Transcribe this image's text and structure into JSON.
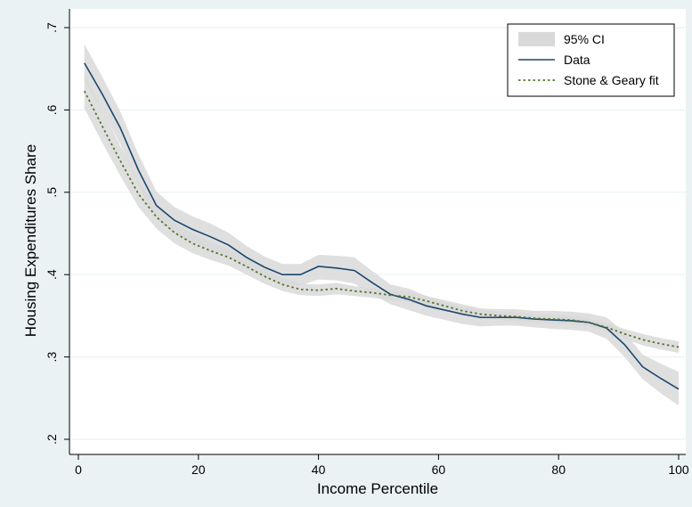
{
  "chart_data": {
    "type": "line",
    "xlabel": "Income Percentile",
    "ylabel": "Housing Expenditures Share",
    "xlim": [
      0,
      100
    ],
    "ylim": [
      0.2,
      0.7
    ],
    "x_ticks": [
      0,
      20,
      40,
      60,
      80,
      100
    ],
    "x_tick_labels": [
      "0",
      "20",
      "40",
      "60",
      "80",
      "100"
    ],
    "y_ticks": [
      0.2,
      0.3,
      0.4,
      0.5,
      0.6,
      0.7
    ],
    "y_tick_labels": [
      ".2",
      ".3",
      ".4",
      ".5",
      ".6",
      ".7"
    ],
    "grid": true,
    "legend_position": "top-right",
    "legend": [
      "95% CI",
      "Data",
      "Stone & Geary fit"
    ],
    "colors": {
      "page_bg": "#eaf2f3",
      "plot_bg": "#ffffff",
      "ci": "#d9d9d9",
      "data": "#1a476f",
      "fit": "#55752f"
    },
    "x": [
      1,
      4,
      7,
      10,
      13,
      16,
      19,
      22,
      25,
      28,
      31,
      34,
      37,
      40,
      43,
      46,
      49,
      52,
      55,
      58,
      61,
      64,
      67,
      70,
      73,
      76,
      79,
      82,
      85,
      88,
      91,
      94,
      97,
      100
    ],
    "series": [
      {
        "name": "Data",
        "style": "solid",
        "values": [
          0.657,
          0.619,
          0.578,
          0.527,
          0.484,
          0.466,
          0.455,
          0.446,
          0.436,
          0.421,
          0.409,
          0.4,
          0.4,
          0.41,
          0.408,
          0.405,
          0.39,
          0.376,
          0.37,
          0.362,
          0.357,
          0.352,
          0.348,
          0.348,
          0.348,
          0.346,
          0.345,
          0.344,
          0.342,
          0.335,
          0.315,
          0.288,
          0.274,
          0.261
        ],
        "ci_lower": [
          0.635,
          0.599,
          0.558,
          0.508,
          0.467,
          0.45,
          0.439,
          0.43,
          0.421,
          0.407,
          0.396,
          0.387,
          0.387,
          0.394,
          0.393,
          0.389,
          0.376,
          0.364,
          0.357,
          0.35,
          0.345,
          0.34,
          0.337,
          0.338,
          0.338,
          0.336,
          0.334,
          0.333,
          0.331,
          0.322,
          0.3,
          0.273,
          0.256,
          0.241
        ],
        "ci_upper": [
          0.68,
          0.64,
          0.598,
          0.546,
          0.501,
          0.482,
          0.471,
          0.462,
          0.451,
          0.435,
          0.422,
          0.413,
          0.413,
          0.424,
          0.423,
          0.421,
          0.404,
          0.388,
          0.383,
          0.374,
          0.369,
          0.364,
          0.359,
          0.358,
          0.358,
          0.356,
          0.356,
          0.355,
          0.353,
          0.348,
          0.33,
          0.303,
          0.292,
          0.282
        ]
      },
      {
        "name": "Stone & Geary fit",
        "style": "dotted",
        "values": [
          0.623,
          0.58,
          0.538,
          0.498,
          0.47,
          0.451,
          0.438,
          0.429,
          0.421,
          0.41,
          0.398,
          0.388,
          0.382,
          0.381,
          0.383,
          0.38,
          0.378,
          0.375,
          0.373,
          0.368,
          0.362,
          0.356,
          0.352,
          0.35,
          0.349,
          0.347,
          0.346,
          0.345,
          0.342,
          0.336,
          0.328,
          0.321,
          0.316,
          0.312
        ],
        "ci_lower": [
          0.602,
          0.56,
          0.52,
          0.482,
          0.456,
          0.438,
          0.426,
          0.418,
          0.411,
          0.4,
          0.389,
          0.38,
          0.375,
          0.374,
          0.376,
          0.374,
          0.372,
          0.369,
          0.367,
          0.362,
          0.357,
          0.351,
          0.347,
          0.345,
          0.344,
          0.342,
          0.341,
          0.34,
          0.337,
          0.331,
          0.322,
          0.314,
          0.309,
          0.305
        ],
        "ci_upper": [
          0.644,
          0.6,
          0.556,
          0.514,
          0.484,
          0.464,
          0.45,
          0.44,
          0.431,
          0.42,
          0.407,
          0.396,
          0.389,
          0.388,
          0.39,
          0.386,
          0.384,
          0.381,
          0.379,
          0.374,
          0.367,
          0.361,
          0.357,
          0.355,
          0.354,
          0.352,
          0.351,
          0.35,
          0.347,
          0.341,
          0.334,
          0.328,
          0.323,
          0.319
        ]
      }
    ]
  }
}
